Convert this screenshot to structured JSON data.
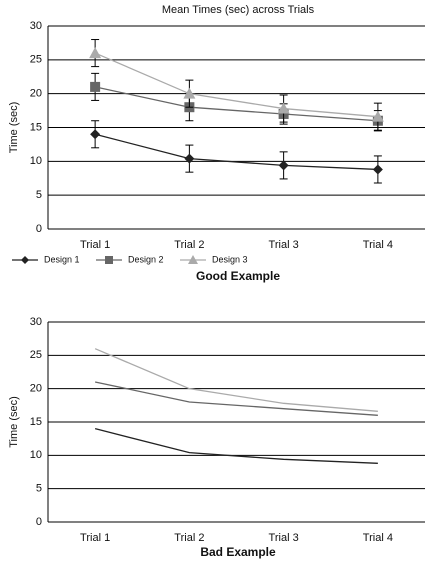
{
  "chart_data": [
    {
      "type": "line",
      "title": "Mean Times (sec) across Trials",
      "y_label": "Time (sec)",
      "caption": "Good Example",
      "categories": [
        "Trial 1",
        "Trial 2",
        "Trial 3",
        "Trial 4"
      ],
      "ylim": [
        0,
        30
      ],
      "yticks": [
        0,
        5,
        10,
        15,
        20,
        25,
        30
      ],
      "grid": true,
      "legend": true,
      "series": [
        {
          "name": "Design 1",
          "color": "#222222",
          "marker": "diamond",
          "values": [
            14,
            10.4,
            9.4,
            8.8
          ],
          "errors": [
            2,
            2,
            2,
            2
          ]
        },
        {
          "name": "Design 2",
          "color": "#666666",
          "marker": "square",
          "values": [
            21,
            18,
            17,
            16
          ],
          "errors": [
            2,
            2,
            1.5,
            1.5
          ]
        },
        {
          "name": "Design 3",
          "color": "#aaaaaa",
          "marker": "triangle",
          "values": [
            26,
            20,
            17.8,
            16.6
          ],
          "errors": [
            2,
            2,
            2,
            2
          ]
        }
      ]
    },
    {
      "type": "line",
      "y_label": "Time (sec)",
      "caption": "Bad Example",
      "categories": [
        "Trial 1",
        "Trial 2",
        "Trial 3",
        "Trial 4"
      ],
      "ylim": [
        0,
        30
      ],
      "yticks": [
        0,
        5,
        10,
        15,
        20,
        25,
        30
      ],
      "grid": true,
      "legend": false,
      "series": [
        {
          "color": "#222222",
          "values": [
            14,
            10.4,
            9.4,
            8.8
          ]
        },
        {
          "color": "#666666",
          "values": [
            21,
            18,
            17,
            16
          ]
        },
        {
          "color": "#aaaaaa",
          "values": [
            26,
            20,
            17.8,
            16.6
          ]
        }
      ]
    }
  ]
}
